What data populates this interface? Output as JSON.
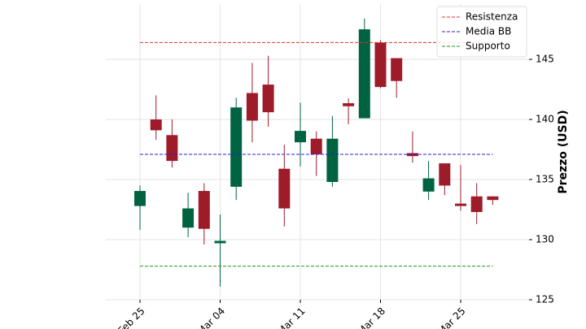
{
  "chart_data": {
    "type": "candlestick",
    "y_label": "Prezzo (USD)",
    "categories": [
      "Feb 25",
      null,
      null,
      null,
      null,
      "Mar 04",
      null,
      null,
      null,
      null,
      "Mar 11",
      null,
      null,
      null,
      null,
      "Mar 18",
      null,
      null,
      null,
      null,
      "Mar 25",
      null,
      null
    ],
    "open": [
      132.8,
      140.0,
      138.7,
      131.0,
      134.05,
      129.7,
      134.4,
      142.2,
      142.9,
      135.9,
      138.1,
      138.4,
      134.8,
      141.35,
      140.1,
      146.4,
      145.1,
      137.2,
      134.0,
      136.35,
      133.0,
      133.6,
      133.6
    ],
    "high": [
      134.5,
      142.0,
      140.0,
      133.9,
      134.7,
      132.1,
      141.8,
      144.7,
      145.3,
      137.9,
      141.4,
      139.0,
      140.3,
      141.75,
      148.4,
      146.6,
      145.1,
      139.0,
      136.55,
      136.35,
      136.2,
      134.7,
      133.6
    ],
    "low": [
      130.8,
      138.3,
      136.0,
      130.2,
      129.6,
      126.1,
      133.3,
      138.1,
      139.4,
      131.1,
      136.1,
      135.3,
      134.4,
      139.6,
      140.1,
      142.6,
      141.8,
      136.4,
      133.3,
      133.7,
      132.4,
      131.3,
      132.9
    ],
    "close": [
      134.05,
      139.1,
      136.55,
      132.6,
      130.9,
      129.9,
      141.0,
      139.9,
      140.6,
      132.6,
      139.05,
      137.1,
      138.4,
      141.1,
      147.5,
      142.7,
      143.2,
      136.95,
      135.1,
      134.5,
      132.8,
      132.3,
      133.3
    ],
    "up_color": "#006340",
    "down_color": "#9e1b2a",
    "lines": [
      {
        "name": "Resistenza",
        "value": 146.4,
        "color": "#e03030"
      },
      {
        "name": "Media BB",
        "value": 137.1,
        "color": "#2020e0"
      },
      {
        "name": "Supporto",
        "value": 127.8,
        "color": "#209020"
      }
    ],
    "ylim": [
      125,
      149.6
    ],
    "yticks": [
      125,
      130,
      135,
      140,
      145
    ],
    "grid": true,
    "legend": "upper right"
  }
}
